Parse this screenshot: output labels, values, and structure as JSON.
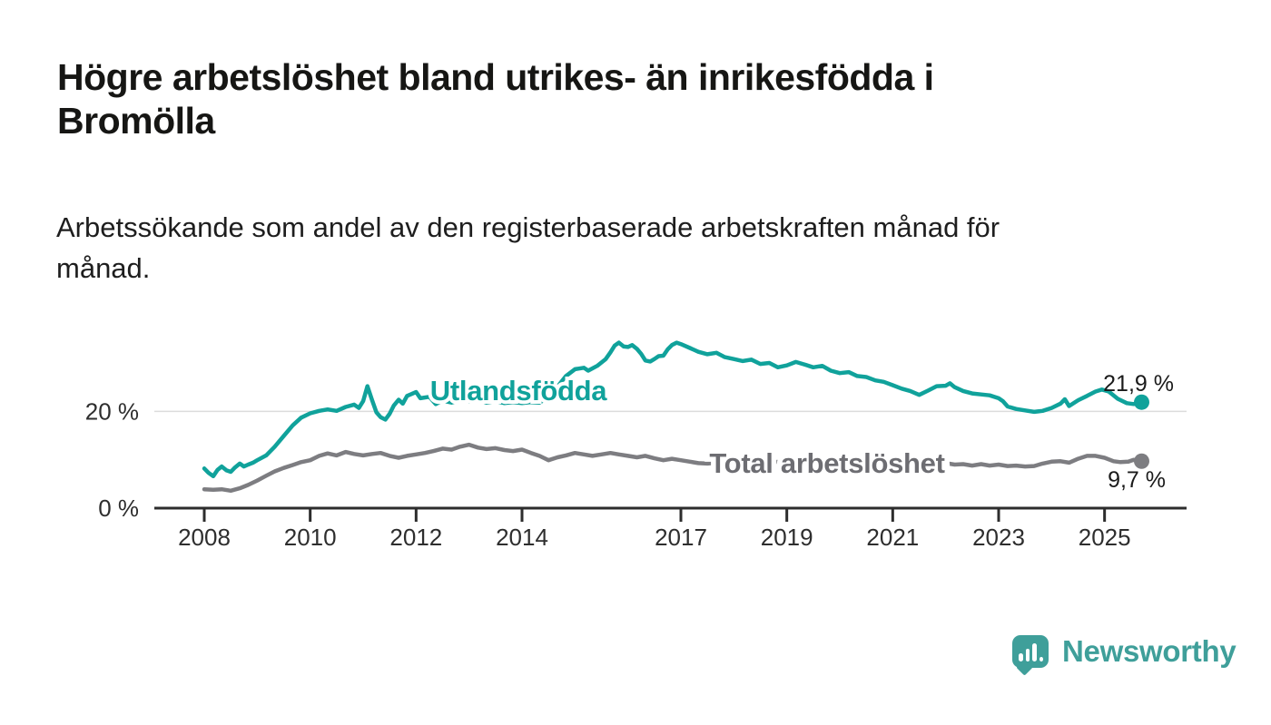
{
  "page": {
    "title": "Högre arbetslöshet bland utrikes- än inrikesfödda i Bromölla",
    "title_lines": [
      "Högre arbetslöshet bland utrikes- än inrikesfödda i",
      "Bromölla"
    ],
    "subtitle": "Arbetssökande som andel av den registerbaserade arbetskraften månad för månad.",
    "subtitle_lines": [
      "Arbetssökande som andel av den registerbaserade arbetskraften månad för",
      "månad."
    ]
  },
  "branding": {
    "logo_text": "Newsworthy",
    "logo_icon": "bar-chart-speech-bubble-icon",
    "logo_color": "#3f9f9a"
  },
  "chart_data": {
    "type": "line",
    "title": "Högre arbetslöshet bland utrikes- än inrikesfödda i Bromölla",
    "subtitle": "Arbetssökande som andel av den registerbaserade arbetskraften månad för månad.",
    "legend_position": "inline-labels-on-lines",
    "grid": "single-horizontal-line-at-20",
    "x_axis": {
      "range": [
        2007.02,
        2026.55
      ],
      "ticks": [
        {
          "value": 2008,
          "label": "2008"
        },
        {
          "value": 2010,
          "label": "2010"
        },
        {
          "value": 2012,
          "label": "2012"
        },
        {
          "value": 2014,
          "label": "2014"
        },
        {
          "value": 2017,
          "label": "2017"
        },
        {
          "value": 2019,
          "label": "2019"
        },
        {
          "value": 2021,
          "label": "2021"
        },
        {
          "value": 2023,
          "label": "2023"
        },
        {
          "value": 2025,
          "label": "2025"
        }
      ]
    },
    "y_axis": {
      "unit": "%",
      "range": [
        0,
        36
      ],
      "ticks": [
        {
          "value": 0,
          "label": "0 %"
        },
        {
          "value": 20,
          "label": "20 %"
        }
      ],
      "grid_values": [
        20
      ]
    },
    "colors": {
      "axis": "#2d2d2d",
      "tick_label": "#2e2e2e",
      "gridline": "#dcdcdc",
      "end_label_text": "#1a1a1a"
    },
    "series": [
      {
        "name": "Utlandsfödda",
        "color": "#10a29b",
        "label_color": "#10a29b",
        "end_label": "21,9 %",
        "end_value": 21.9,
        "points": [
          [
            2008.0,
            8.2
          ],
          [
            2008.08,
            7.3
          ],
          [
            2008.17,
            6.6
          ],
          [
            2008.25,
            7.9
          ],
          [
            2008.33,
            8.6
          ],
          [
            2008.42,
            7.8
          ],
          [
            2008.5,
            7.5
          ],
          [
            2008.58,
            8.4
          ],
          [
            2008.67,
            9.2
          ],
          [
            2008.75,
            8.6
          ],
          [
            2008.83,
            9.0
          ],
          [
            2008.92,
            9.4
          ],
          [
            2009.0,
            9.9
          ],
          [
            2009.17,
            10.9
          ],
          [
            2009.33,
            12.7
          ],
          [
            2009.5,
            14.9
          ],
          [
            2009.67,
            17.1
          ],
          [
            2009.83,
            18.7
          ],
          [
            2010.0,
            19.6
          ],
          [
            2010.17,
            20.1
          ],
          [
            2010.33,
            20.4
          ],
          [
            2010.5,
            20.1
          ],
          [
            2010.67,
            20.9
          ],
          [
            2010.83,
            21.4
          ],
          [
            2010.92,
            20.7
          ],
          [
            2011.0,
            22.1
          ],
          [
            2011.08,
            25.2
          ],
          [
            2011.17,
            22.3
          ],
          [
            2011.25,
            19.8
          ],
          [
            2011.33,
            18.8
          ],
          [
            2011.42,
            18.3
          ],
          [
            2011.5,
            19.5
          ],
          [
            2011.58,
            21.2
          ],
          [
            2011.67,
            22.4
          ],
          [
            2011.75,
            21.6
          ],
          [
            2011.83,
            23.2
          ],
          [
            2011.92,
            23.6
          ],
          [
            2012.0,
            24.0
          ],
          [
            2012.08,
            22.7
          ],
          [
            2012.25,
            23.0
          ],
          [
            2012.37,
            21.5
          ],
          [
            2012.5,
            22.2
          ],
          [
            2012.67,
            21.8
          ],
          [
            2012.83,
            22.3
          ],
          [
            2013.0,
            22.0
          ],
          [
            2013.17,
            22.4
          ],
          [
            2013.33,
            21.8
          ],
          [
            2013.5,
            22.1
          ],
          [
            2013.67,
            21.7
          ],
          [
            2013.83,
            21.9
          ],
          [
            2014.0,
            21.7
          ],
          [
            2014.17,
            21.9
          ],
          [
            2014.33,
            21.8
          ],
          [
            2014.5,
            22.9
          ],
          [
            2014.67,
            25.1
          ],
          [
            2014.83,
            27.3
          ],
          [
            2015.0,
            28.7
          ],
          [
            2015.17,
            29.0
          ],
          [
            2015.25,
            28.4
          ],
          [
            2015.42,
            29.4
          ],
          [
            2015.58,
            30.8
          ],
          [
            2015.67,
            32.2
          ],
          [
            2015.75,
            33.6
          ],
          [
            2015.83,
            34.2
          ],
          [
            2015.92,
            33.4
          ],
          [
            2016.0,
            33.3
          ],
          [
            2016.08,
            33.7
          ],
          [
            2016.17,
            32.9
          ],
          [
            2016.25,
            31.9
          ],
          [
            2016.33,
            30.5
          ],
          [
            2016.42,
            30.3
          ],
          [
            2016.5,
            30.8
          ],
          [
            2016.58,
            31.4
          ],
          [
            2016.67,
            31.5
          ],
          [
            2016.75,
            32.8
          ],
          [
            2016.83,
            33.7
          ],
          [
            2016.92,
            34.2
          ],
          [
            2017.0,
            33.9
          ],
          [
            2017.17,
            33.1
          ],
          [
            2017.33,
            32.3
          ],
          [
            2017.5,
            31.8
          ],
          [
            2017.67,
            32.1
          ],
          [
            2017.83,
            31.2
          ],
          [
            2018.0,
            30.8
          ],
          [
            2018.17,
            30.4
          ],
          [
            2018.33,
            30.7
          ],
          [
            2018.5,
            29.8
          ],
          [
            2018.67,
            30.0
          ],
          [
            2018.83,
            29.1
          ],
          [
            2019.0,
            29.5
          ],
          [
            2019.17,
            30.2
          ],
          [
            2019.33,
            29.7
          ],
          [
            2019.5,
            29.1
          ],
          [
            2019.67,
            29.4
          ],
          [
            2019.83,
            28.4
          ],
          [
            2020.0,
            27.9
          ],
          [
            2020.17,
            28.1
          ],
          [
            2020.33,
            27.3
          ],
          [
            2020.5,
            27.1
          ],
          [
            2020.67,
            26.4
          ],
          [
            2020.83,
            26.1
          ],
          [
            2021.0,
            25.4
          ],
          [
            2021.17,
            24.7
          ],
          [
            2021.33,
            24.2
          ],
          [
            2021.5,
            23.4
          ],
          [
            2021.67,
            24.3
          ],
          [
            2021.83,
            25.2
          ],
          [
            2022.0,
            25.3
          ],
          [
            2022.08,
            25.8
          ],
          [
            2022.17,
            25.0
          ],
          [
            2022.33,
            24.2
          ],
          [
            2022.5,
            23.7
          ],
          [
            2022.67,
            23.5
          ],
          [
            2022.83,
            23.3
          ],
          [
            2023.0,
            22.7
          ],
          [
            2023.08,
            22.1
          ],
          [
            2023.17,
            21.0
          ],
          [
            2023.33,
            20.5
          ],
          [
            2023.5,
            20.2
          ],
          [
            2023.67,
            19.9
          ],
          [
            2023.83,
            20.1
          ],
          [
            2024.0,
            20.7
          ],
          [
            2024.17,
            21.6
          ],
          [
            2024.25,
            22.5
          ],
          [
            2024.33,
            21.1
          ],
          [
            2024.5,
            22.3
          ],
          [
            2024.67,
            23.2
          ],
          [
            2024.83,
            24.1
          ],
          [
            2024.95,
            24.5
          ],
          [
            2025.08,
            24.1
          ],
          [
            2025.25,
            22.6
          ],
          [
            2025.42,
            21.7
          ],
          [
            2025.55,
            21.5
          ],
          [
            2025.7,
            21.9
          ]
        ]
      },
      {
        "name": "Total arbetslöshet",
        "color": "#7d7d81",
        "label_color": "#6d6d72",
        "end_label": "9,7 %",
        "end_value": 9.7,
        "points": [
          [
            2008.0,
            3.9
          ],
          [
            2008.17,
            3.8
          ],
          [
            2008.33,
            3.9
          ],
          [
            2008.5,
            3.6
          ],
          [
            2008.67,
            4.1
          ],
          [
            2008.83,
            4.8
          ],
          [
            2009.0,
            5.7
          ],
          [
            2009.17,
            6.7
          ],
          [
            2009.33,
            7.6
          ],
          [
            2009.5,
            8.3
          ],
          [
            2009.67,
            8.9
          ],
          [
            2009.83,
            9.5
          ],
          [
            2010.0,
            9.9
          ],
          [
            2010.17,
            10.8
          ],
          [
            2010.33,
            11.3
          ],
          [
            2010.5,
            10.9
          ],
          [
            2010.67,
            11.6
          ],
          [
            2010.83,
            11.2
          ],
          [
            2011.0,
            10.9
          ],
          [
            2011.17,
            11.2
          ],
          [
            2011.33,
            11.4
          ],
          [
            2011.5,
            10.8
          ],
          [
            2011.67,
            10.4
          ],
          [
            2011.83,
            10.8
          ],
          [
            2012.0,
            11.1
          ],
          [
            2012.17,
            11.4
          ],
          [
            2012.33,
            11.8
          ],
          [
            2012.5,
            12.3
          ],
          [
            2012.67,
            12.1
          ],
          [
            2012.83,
            12.7
          ],
          [
            2013.0,
            13.1
          ],
          [
            2013.17,
            12.5
          ],
          [
            2013.33,
            12.2
          ],
          [
            2013.5,
            12.4
          ],
          [
            2013.67,
            12.0
          ],
          [
            2013.83,
            11.8
          ],
          [
            2014.0,
            12.1
          ],
          [
            2014.17,
            11.4
          ],
          [
            2014.33,
            10.8
          ],
          [
            2014.5,
            9.9
          ],
          [
            2014.67,
            10.5
          ],
          [
            2014.83,
            10.9
          ],
          [
            2015.0,
            11.4
          ],
          [
            2015.17,
            11.1
          ],
          [
            2015.33,
            10.8
          ],
          [
            2015.5,
            11.1
          ],
          [
            2015.67,
            11.4
          ],
          [
            2015.83,
            11.1
          ],
          [
            2016.0,
            10.8
          ],
          [
            2016.17,
            10.5
          ],
          [
            2016.33,
            10.8
          ],
          [
            2016.5,
            10.3
          ],
          [
            2016.67,
            9.9
          ],
          [
            2016.83,
            10.2
          ],
          [
            2017.0,
            9.9
          ],
          [
            2017.17,
            9.6
          ],
          [
            2017.33,
            9.3
          ],
          [
            2017.5,
            9.2
          ],
          [
            2017.67,
            9.4
          ],
          [
            2017.83,
            9.5
          ],
          [
            2018.0,
            9.7
          ],
          [
            2018.33,
            9.4
          ],
          [
            2018.67,
            9.5
          ],
          [
            2019.0,
            9.6
          ],
          [
            2019.33,
            9.3
          ],
          [
            2019.67,
            9.4
          ],
          [
            2020.0,
            9.9
          ],
          [
            2020.25,
            10.7
          ],
          [
            2020.5,
            10.4
          ],
          [
            2020.75,
            10.2
          ],
          [
            2021.0,
            10.0
          ],
          [
            2021.33,
            9.7
          ],
          [
            2021.67,
            9.5
          ],
          [
            2022.0,
            9.3
          ],
          [
            2022.17,
            9.0
          ],
          [
            2022.33,
            9.1
          ],
          [
            2022.5,
            8.8
          ],
          [
            2022.67,
            9.1
          ],
          [
            2022.83,
            8.8
          ],
          [
            2023.0,
            9.0
          ],
          [
            2023.17,
            8.7
          ],
          [
            2023.33,
            8.8
          ],
          [
            2023.5,
            8.6
          ],
          [
            2023.67,
            8.7
          ],
          [
            2023.83,
            9.2
          ],
          [
            2024.0,
            9.6
          ],
          [
            2024.17,
            9.7
          ],
          [
            2024.33,
            9.4
          ],
          [
            2024.5,
            10.2
          ],
          [
            2024.67,
            10.8
          ],
          [
            2024.83,
            10.8
          ],
          [
            2025.0,
            10.4
          ],
          [
            2025.17,
            9.7
          ],
          [
            2025.3,
            9.5
          ],
          [
            2025.45,
            9.6
          ],
          [
            2025.55,
            10.0
          ],
          [
            2025.7,
            9.7
          ]
        ]
      }
    ]
  }
}
